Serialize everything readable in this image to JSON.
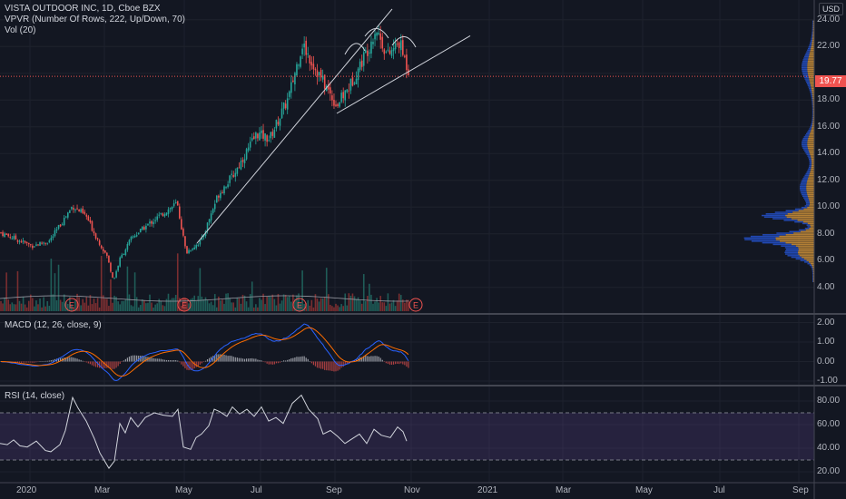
{
  "chart_data": [
    {
      "type": "line",
      "legend": {
        "title": "VISTA OUTDOOR INC, 1D, Cboe BZX",
        "vpvr": "VPVR (Number Of Rows, 222, Up/Down, 70)",
        "vol": "Vol (20)"
      },
      "currency": "USD",
      "last_price": "19.77",
      "y_ticks": [
        "24.00",
        "22.00",
        "20.00",
        "18.00",
        "16.00",
        "14.00",
        "12.00",
        "10.00",
        "8.00",
        "6.00",
        "4.00"
      ],
      "ylim": [
        3,
        25
      ],
      "x_labels": [
        "2020",
        "Mar",
        "May",
        "Jul",
        "Sep",
        "Nov",
        "2021",
        "Mar",
        "May",
        "Jul",
        "Sep"
      ],
      "earnings_marker": "E",
      "colors": {
        "up": "#26a69a",
        "down": "#ef5350",
        "vp_up": "#2962ff",
        "vp_down": "#e8a33d"
      },
      "price_series": [
        [
          "Dec 16",
          8.1
        ],
        [
          "Dec 30",
          7.6
        ],
        [
          "Jan 13",
          7.1
        ],
        [
          "Jan 27",
          7.5
        ],
        [
          "Feb 03",
          10.1
        ],
        [
          "Feb 14",
          9.3
        ],
        [
          "Feb 24",
          7.9
        ],
        [
          "Mar 09",
          6.3
        ],
        [
          "Mar 16",
          4.5
        ],
        [
          "Mar 23",
          6.1
        ],
        [
          "Mar 30",
          7.7
        ],
        [
          "Apr 13",
          8.8
        ],
        [
          "Apr 27",
          10.3
        ],
        [
          "May 04",
          6.6
        ],
        [
          "May 18",
          7.5
        ],
        [
          "Jun 01",
          10.9
        ],
        [
          "Jun 15",
          12.5
        ],
        [
          "Jul 06",
          15.5
        ],
        [
          "Jul 20",
          15.1
        ],
        [
          "Aug 03",
          18.2
        ],
        [
          "Aug 10",
          22.2
        ],
        [
          "Aug 24",
          20.3
        ],
        [
          "Sep 08",
          17.6
        ],
        [
          "Sep 21",
          19.0
        ],
        [
          "Oct 05",
          22.1
        ],
        [
          "Oct 12",
          23.4
        ],
        [
          "Oct 19",
          21.3
        ],
        [
          "Oct 26",
          22.3
        ],
        [
          "Nov 02",
          19.77
        ]
      ],
      "annotations": [
        "head-and-shoulders pattern arcs",
        "rising trendline",
        "rising wedge support line"
      ]
    },
    {
      "type": "line",
      "title": "MACD (12, 26, close, 9)",
      "y_ticks": [
        "2.00",
        "1.00",
        "0.00",
        "-1.00"
      ],
      "ylim": [
        -1,
        2
      ]
    },
    {
      "type": "line",
      "title": "RSI (14, close)",
      "y_ticks": [
        "80.00",
        "60.00",
        "40.00",
        "20.00"
      ],
      "ylim": [
        15,
        90
      ],
      "bands": [
        30,
        70
      ],
      "rsi_series": [
        [
          0,
          44
        ],
        [
          8,
          43
        ],
        [
          15,
          47
        ],
        [
          22,
          42
        ],
        [
          30,
          41
        ],
        [
          40,
          46
        ],
        [
          50,
          38
        ],
        [
          56,
          37
        ],
        [
          66,
          43
        ],
        [
          72,
          55
        ],
        [
          80,
          83
        ],
        [
          86,
          74
        ],
        [
          95,
          63
        ],
        [
          104,
          48
        ],
        [
          110,
          36
        ],
        [
          120,
          23
        ],
        [
          126,
          29
        ],
        [
          132,
          61
        ],
        [
          138,
          53
        ],
        [
          144,
          66
        ],
        [
          152,
          58
        ],
        [
          160,
          66
        ],
        [
          170,
          70
        ],
        [
          180,
          68
        ],
        [
          190,
          67
        ],
        [
          196,
          73
        ],
        [
          202,
          41
        ],
        [
          210,
          39
        ],
        [
          216,
          49
        ],
        [
          222,
          52
        ],
        [
          230,
          59
        ],
        [
          236,
          73
        ],
        [
          242,
          71
        ],
        [
          250,
          67
        ],
        [
          256,
          75
        ],
        [
          264,
          69
        ],
        [
          272,
          73
        ],
        [
          280,
          67
        ],
        [
          288,
          75
        ],
        [
          296,
          63
        ],
        [
          304,
          66
        ],
        [
          312,
          61
        ],
        [
          322,
          78
        ],
        [
          332,
          85
        ],
        [
          340,
          73
        ],
        [
          350,
          65
        ],
        [
          356,
          52
        ],
        [
          364,
          55
        ],
        [
          372,
          50
        ],
        [
          380,
          44
        ],
        [
          388,
          48
        ],
        [
          396,
          52
        ],
        [
          404,
          44
        ],
        [
          412,
          56
        ],
        [
          420,
          51
        ],
        [
          430,
          49
        ],
        [
          438,
          58
        ],
        [
          444,
          54
        ],
        [
          448,
          46
        ]
      ]
    }
  ]
}
